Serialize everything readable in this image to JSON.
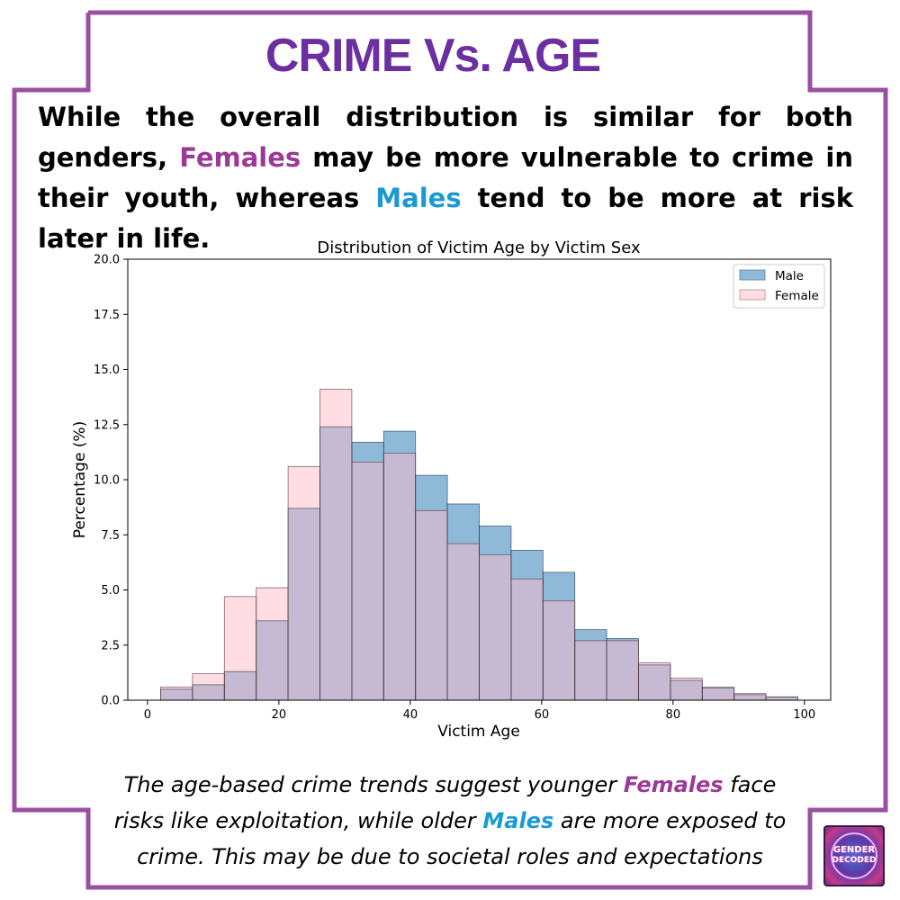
{
  "title": "CRIME Vs. AGE",
  "intro": {
    "p1": "While the overall distribution is similar for both genders,",
    "highlight_female": "Females",
    "p2": " may be more vulnerable to crime in their youth, whereas ",
    "highlight_male": "Males",
    "p3": " tend to be more at risk later in life."
  },
  "outro": {
    "p1": "The age-based crime trends suggest younger ",
    "highlight_female": "Females",
    "p2": " face risks like exploitation, while older ",
    "highlight_male": "Males",
    "p3": " are more exposed to crime. This may be due to societal roles and expectations"
  },
  "logo": {
    "line1": "GENDER",
    "line2": "DECODED"
  },
  "colors": {
    "border": "#9b4fa3",
    "title": "#6b2fa0",
    "female_highlight": "#9b3a96",
    "male_highlight": "#1b9ad1",
    "male_bar": "#8fb9d9",
    "female_bar": "#ffdde2",
    "overlap_bar": "#c5bad1"
  },
  "chart_data": {
    "type": "bar",
    "title": "Distribution of Victim Age by Victim Sex",
    "xlabel": "Victim Age",
    "ylabel": "Percentage (%)",
    "xlim": [
      -3,
      104
    ],
    "ylim": [
      0,
      20
    ],
    "xticks": [
      0,
      20,
      40,
      60,
      80,
      100
    ],
    "yticks": [
      0.0,
      2.5,
      5.0,
      7.5,
      10.0,
      12.5,
      15.0,
      17.5,
      20.0
    ],
    "ytick_labels": [
      "0.0",
      "2.5",
      "5.0",
      "7.5",
      "10.0",
      "12.5",
      "15.0",
      "17.5",
      "20.0"
    ],
    "grid": false,
    "legend_position": "top-right",
    "bin_edges": [
      2,
      6.85,
      11.7,
      16.55,
      21.4,
      26.25,
      31.1,
      35.95,
      40.8,
      45.65,
      50.5,
      55.35,
      60.2,
      65.05,
      69.9,
      74.75,
      79.6,
      84.45,
      89.3,
      94.15,
      99
    ],
    "series": [
      {
        "name": "Male",
        "values": [
          0.5,
          0.7,
          1.3,
          3.6,
          8.7,
          12.4,
          11.7,
          12.2,
          10.2,
          8.9,
          7.9,
          6.8,
          5.8,
          3.2,
          2.8,
          1.6,
          0.9,
          0.55,
          0.25,
          0.15
        ]
      },
      {
        "name": "Female",
        "values": [
          0.6,
          1.2,
          4.7,
          5.1,
          10.6,
          14.1,
          10.8,
          11.2,
          8.6,
          7.1,
          6.6,
          5.5,
          4.5,
          2.7,
          2.7,
          1.7,
          1.0,
          0.6,
          0.3,
          0.15
        ]
      }
    ]
  }
}
